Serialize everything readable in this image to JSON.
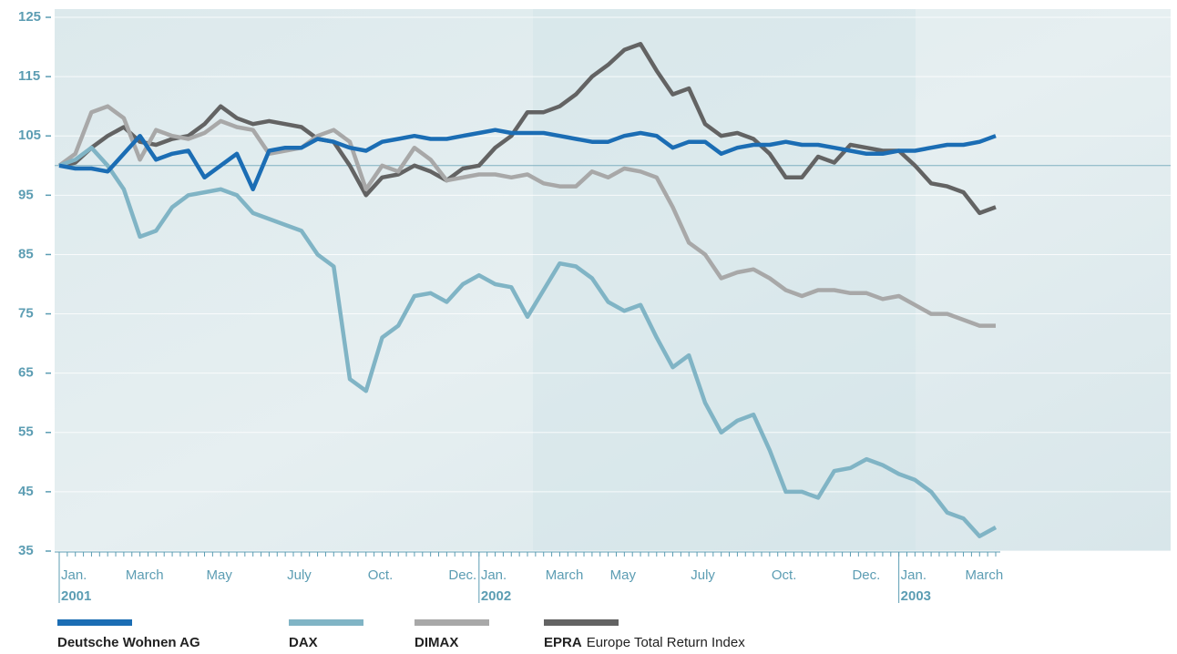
{
  "chart_data": {
    "type": "line",
    "categories": [
      "Jan.",
      null,
      null,
      null,
      "March",
      null,
      null,
      null,
      null,
      "May",
      null,
      null,
      null,
      null,
      "July",
      null,
      null,
      null,
      null,
      "Oct.",
      null,
      null,
      null,
      null,
      "Dec.",
      null,
      "Jan.",
      null,
      null,
      null,
      "March",
      null,
      null,
      null,
      "May",
      null,
      null,
      null,
      null,
      "July",
      null,
      null,
      null,
      null,
      "Oct.",
      null,
      null,
      null,
      null,
      "Dec.",
      null,
      null,
      "Jan.",
      null,
      null,
      null,
      "March",
      null,
      null
    ],
    "years": [
      "2001",
      null,
      null,
      null,
      null,
      null,
      null,
      null,
      null,
      null,
      null,
      null,
      null,
      null,
      null,
      null,
      null,
      null,
      null,
      null,
      null,
      null,
      null,
      null,
      null,
      null,
      "2002",
      null,
      null,
      null,
      null,
      null,
      null,
      null,
      null,
      null,
      null,
      null,
      null,
      null,
      null,
      null,
      null,
      null,
      null,
      null,
      null,
      null,
      null,
      null,
      null,
      null,
      "2003",
      null,
      null,
      null,
      null,
      null,
      null
    ],
    "series": [
      {
        "name": "Deutsche Wohnen AG",
        "color": "#1b6db4",
        "values": [
          100,
          99.5,
          99.5,
          99,
          102,
          105,
          101,
          102,
          102.5,
          98,
          100,
          102,
          96,
          102.5,
          103,
          103,
          104.5,
          104,
          103,
          102.5,
          104,
          104.5,
          105,
          104.5,
          104.5,
          105,
          105.5,
          106,
          105.5,
          105.5,
          105.5,
          105,
          104.5,
          104,
          104,
          105,
          105.5,
          105,
          103,
          104,
          104,
          102,
          103,
          103.5,
          103.5,
          104,
          103.5,
          103.5,
          103,
          102.5,
          102,
          102,
          102.5,
          102.5,
          103,
          103.5,
          103.5,
          104,
          105
        ]
      },
      {
        "name": "DAX",
        "color": "#80b4c5",
        "values": [
          100,
          101,
          103,
          100,
          96,
          88,
          89,
          93,
          95,
          95.5,
          96,
          95,
          92,
          91,
          90,
          89,
          85,
          83,
          64,
          62,
          71,
          73,
          78,
          78.5,
          77,
          80,
          81.5,
          80,
          79.5,
          74.5,
          79,
          83.5,
          83,
          81,
          77,
          75.5,
          76.5,
          71,
          66,
          68,
          60,
          55,
          57,
          58,
          52,
          45,
          45,
          44,
          48.5,
          49,
          50.5,
          49.5,
          48,
          47,
          45,
          41.5,
          40.5,
          37.5,
          39
        ]
      },
      {
        "name": "DIMAX",
        "color": "#a8a8a8",
        "values": [
          100,
          102,
          109,
          110,
          108,
          101,
          106,
          105,
          104.5,
          105.5,
          107.5,
          106.5,
          106,
          102,
          102.5,
          103,
          105,
          106,
          104,
          96,
          100,
          99,
          103,
          101,
          97.5,
          98,
          98.5,
          98.5,
          98,
          98.5,
          97,
          96.5,
          96.5,
          99,
          98,
          99.5,
          99,
          98,
          93,
          87,
          85,
          81,
          82,
          82.5,
          81,
          79,
          78,
          79,
          79,
          78.5,
          78.5,
          77.5,
          78,
          76.5,
          75,
          75,
          74,
          73,
          73
        ]
      },
      {
        "name": "EPRA",
        "description": "Europe Total Return Index",
        "color": "#636363",
        "values": [
          100,
          100.5,
          103,
          105,
          106.5,
          104,
          103.5,
          104.5,
          105,
          107,
          110,
          108,
          107,
          107.5,
          107,
          106.5,
          104.5,
          104,
          100,
          95,
          98,
          98.5,
          100,
          99,
          97.5,
          99.5,
          100,
          103,
          105,
          109,
          109,
          110,
          112,
          115,
          117,
          119.5,
          120.5,
          116,
          112,
          113,
          107,
          105,
          105.5,
          104.5,
          102,
          98,
          98,
          101.5,
          100.5,
          103.5,
          103,
          102.5,
          102.5,
          100,
          97,
          96.5,
          95.5,
          92,
          93
        ]
      }
    ],
    "reference_line": 100,
    "ylim": [
      35,
      125
    ],
    "yticks": [
      35,
      45,
      55,
      65,
      75,
      85,
      95,
      105,
      115,
      125
    ],
    "grid": true
  }
}
